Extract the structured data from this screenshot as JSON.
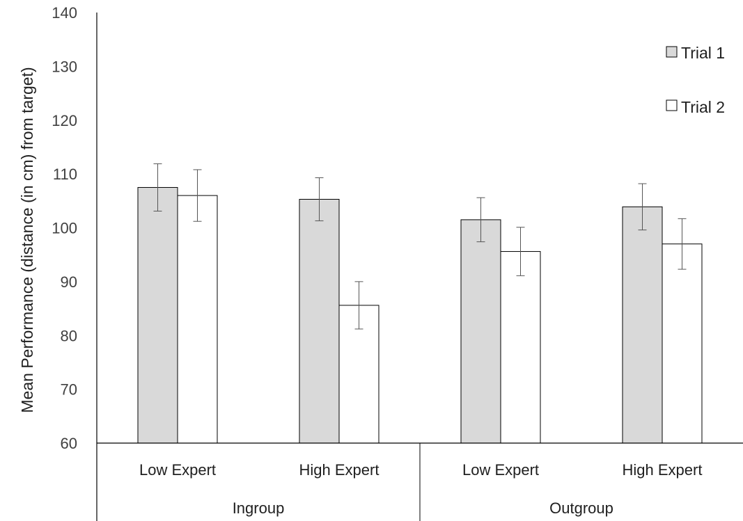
{
  "chart_data": {
    "type": "bar",
    "ylabel": "Mean Performance (distance (in cm) from target)",
    "ylim": [
      60,
      140
    ],
    "yticks": [
      60,
      70,
      80,
      90,
      100,
      110,
      120,
      130,
      140
    ],
    "grid": false,
    "legend_position": "top-right",
    "groups": [
      {
        "label": "Ingroup",
        "categories": [
          "Low Expert",
          "High Expert"
        ]
      },
      {
        "label": "Outgroup",
        "categories": [
          "Low Expert",
          "High Expert"
        ]
      }
    ],
    "categories": [
      "Low Expert",
      "High Expert",
      "Low Expert",
      "High Expert"
    ],
    "series": [
      {
        "name": "Trial 1",
        "color": "#d9d9d9",
        "values": [
          107.5,
          105.3,
          101.5,
          103.9
        ],
        "error": [
          4.4,
          4.0,
          4.1,
          4.3
        ]
      },
      {
        "name": "Trial 2",
        "color": "#ffffff",
        "values": [
          106.0,
          85.6,
          95.6,
          97.0
        ],
        "error": [
          4.8,
          4.4,
          4.5,
          4.7
        ]
      }
    ]
  }
}
